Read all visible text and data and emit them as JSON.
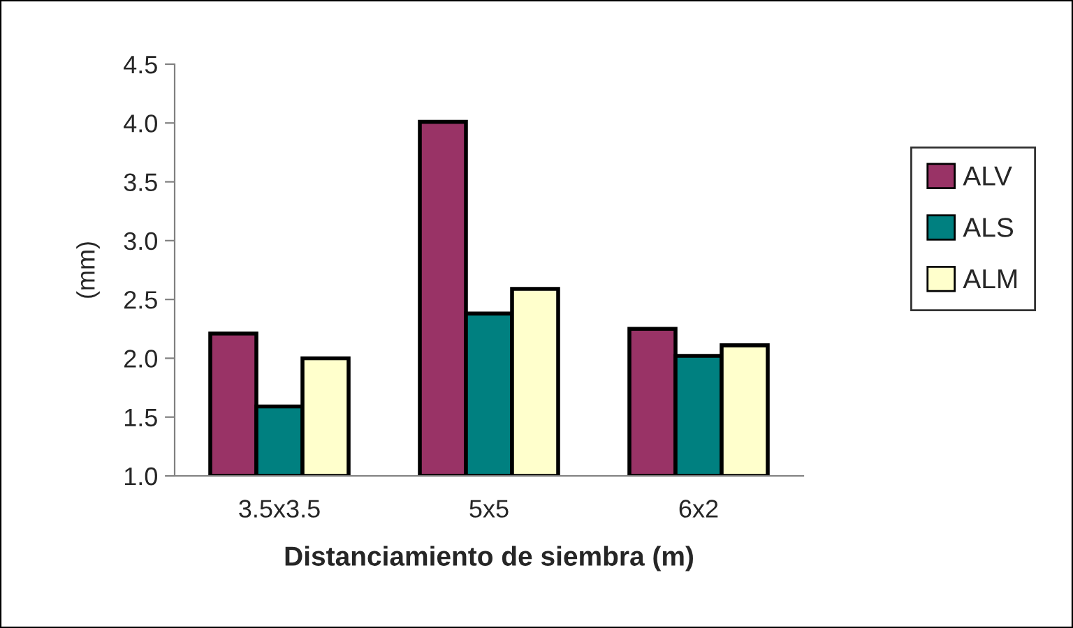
{
  "chart_data": {
    "type": "bar",
    "xlabel": "Distanciamiento de siembra (m)",
    "ylabel": "(mm)",
    "categories": [
      "3.5x3.5",
      "5x5",
      "6x2"
    ],
    "series": [
      {
        "name": "ALV",
        "color": "#993366",
        "values": [
          2.21,
          4.01,
          2.25
        ]
      },
      {
        "name": "ALS",
        "color": "#008080",
        "values": [
          1.59,
          2.38,
          2.02
        ]
      },
      {
        "name": "ALM",
        "color": "#ffffcc",
        "values": [
          2.0,
          2.59,
          2.11
        ]
      }
    ],
    "ylim": [
      1.0,
      4.5
    ],
    "yticks": [
      {
        "value": 1.0,
        "label": "1.0"
      },
      {
        "value": 1.5,
        "label": "1.5"
      },
      {
        "value": 2.0,
        "label": "2.0"
      },
      {
        "value": 2.5,
        "label": "2.5"
      },
      {
        "value": 3.0,
        "label": "3.0"
      },
      {
        "value": 3.5,
        "label": "3.5"
      },
      {
        "value": 4.0,
        "label": "4.0"
      },
      {
        "value": 4.5,
        "label": "4.5"
      }
    ],
    "grid": false,
    "legend": "right"
  }
}
